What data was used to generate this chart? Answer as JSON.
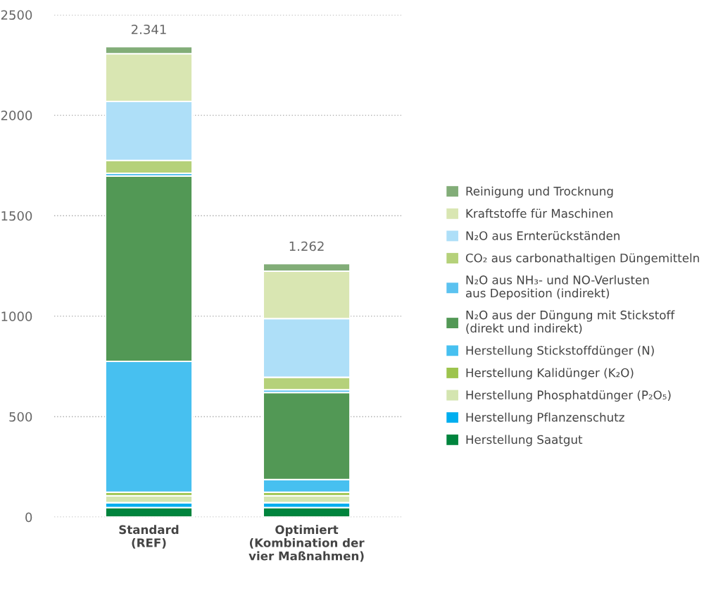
{
  "chart_data": {
    "type": "bar",
    "stacked": true,
    "categories": [
      "Standard\n(REF)",
      "Optimiert\n(Kombination der\nvier Maßnahmen)"
    ],
    "series": [
      {
        "name": "Herstellung Saatgut",
        "color": "#00843d",
        "values": [
          48,
          48
        ]
      },
      {
        "name": "Herstellung Pflanzenschutz",
        "color": "#00aeef",
        "values": [
          24,
          24
        ]
      },
      {
        "name": "Herstellung Phosphatdünger (P₂O₅)",
        "color": "#d4e5b0",
        "values": [
          34,
          34
        ]
      },
      {
        "name": "Herstellung Kalidünger (K₂O)",
        "color": "#9dc44d",
        "values": [
          18,
          18
        ]
      },
      {
        "name": "Herstellung Stickstoffdünger (N)",
        "color": "#47c0f0",
        "values": [
          651,
          63
        ]
      },
      {
        "name": "N₂O aus der Düngung mit Stickstoff\n(direkt und indirekt)",
        "color": "#529855",
        "values": [
          922,
          433
        ]
      },
      {
        "name": "N₂O aus NH₃- und NO-Verlusten\naus Deposition (indirekt)",
        "color": "#5bc2f0",
        "values": [
          14,
          14
        ]
      },
      {
        "name": "CO₂ aus carbonathaltigen Düngemitteln",
        "color": "#b5d17a",
        "values": [
          64,
          62
        ]
      },
      {
        "name": "N₂O aus Ernterückständen",
        "color": "#aedff8",
        "values": [
          294,
          292
        ]
      },
      {
        "name": "Kraftstoffe für Maschinen",
        "color": "#d9e6b2",
        "values": [
          237,
          236
        ]
      },
      {
        "name": "Reinigung und Trocknung",
        "color": "#82ad78",
        "values": [
          35,
          38
        ]
      }
    ],
    "totals": [
      "2.341",
      "1.262"
    ],
    "ylim": [
      0,
      2500
    ],
    "yticks": [
      0,
      500,
      1000,
      1500,
      2000,
      2500
    ],
    "grid": "y",
    "legend": "right"
  }
}
